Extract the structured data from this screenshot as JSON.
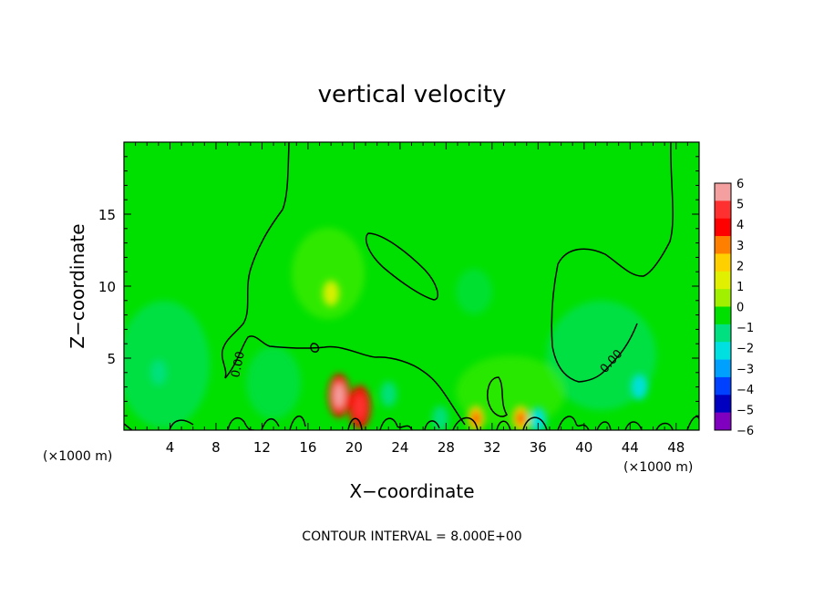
{
  "chart_data": {
    "type": "heatmap",
    "title": "vertical velocity",
    "xlabel": "X−coordinate",
    "ylabel": "Z−coordinate",
    "x_unit_left": "(×1000 m)",
    "x_unit_right": "(×1000 m)",
    "xlim": [
      0,
      50
    ],
    "ylim": [
      0,
      20
    ],
    "xticks": [
      4,
      8,
      12,
      16,
      20,
      24,
      28,
      32,
      36,
      40,
      44,
      48
    ],
    "yticks": [
      5,
      10,
      15
    ],
    "colorbar": {
      "levels": [
        6,
        5,
        4,
        3,
        2,
        1,
        0,
        -1,
        -2,
        -3,
        -4,
        -5,
        -6
      ],
      "labels": [
        "6",
        "5",
        "4",
        "3",
        "2",
        "1",
        "0",
        "−1",
        "−2",
        "−3",
        "−4",
        "−5",
        "−6"
      ],
      "colors": [
        "#f4a0a0",
        "#ff3030",
        "#ff0000",
        "#ff8000",
        "#ffd000",
        "#e0f000",
        "#a0f000",
        "#00e000",
        "#00e080",
        "#00e0e0",
        "#00a0ff",
        "#0040ff",
        "#0000c0",
        "#8000c0"
      ]
    },
    "contour_label": "0.00",
    "contour_interval_text": "CONTOUR INTERVAL = 8.000E+00",
    "features": [
      {
        "kind": "updraft",
        "x": 18.7,
        "z": 2.4,
        "value": 4.5
      },
      {
        "kind": "updraft",
        "x": 20.5,
        "z": 1.6,
        "value": 4.0
      },
      {
        "kind": "updraft",
        "x": 30.6,
        "z": 0.8,
        "value": 2.5
      },
      {
        "kind": "updraft",
        "x": 34.5,
        "z": 0.8,
        "value": 2.5
      },
      {
        "kind": "updraft",
        "x": 18.0,
        "z": 9.5,
        "value": 1.0
      },
      {
        "kind": "downdraft",
        "x": 44.8,
        "z": 3.0,
        "value": -2.8
      },
      {
        "kind": "downdraft",
        "x": 23.0,
        "z": 2.5,
        "value": -1.8
      },
      {
        "kind": "downdraft",
        "x": 36.0,
        "z": 0.7,
        "value": -2.5
      },
      {
        "kind": "downdraft",
        "x": 3.0,
        "z": 4.0,
        "value": -1.2
      },
      {
        "kind": "downdraft",
        "x": 27.5,
        "z": 0.8,
        "value": -1.5
      }
    ]
  }
}
